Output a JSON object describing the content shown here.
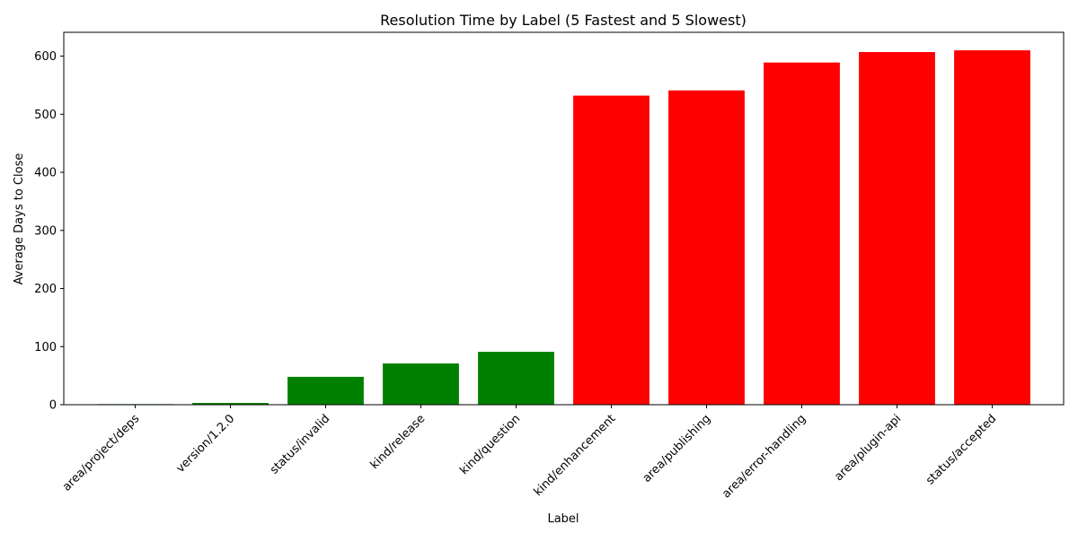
{
  "chart_data": {
    "type": "bar",
    "title": "Resolution Time by Label (5 Fastest and 5 Slowest)",
    "xlabel": "Label",
    "ylabel": "Average Days to Close",
    "categories": [
      "area/project/deps",
      "version/1.2.0",
      "status/invalid",
      "kind/release",
      "kind/question",
      "kind/enhancement",
      "area/publishing",
      "area/error-handling",
      "area/plugin-api",
      "status/accepted"
    ],
    "values": [
      1,
      3,
      48,
      71,
      91,
      532,
      541,
      589,
      607,
      610
    ],
    "bar_colors": [
      "#008000",
      "#008000",
      "#008000",
      "#008000",
      "#008000",
      "#ff0000",
      "#ff0000",
      "#ff0000",
      "#ff0000",
      "#ff0000"
    ],
    "ylim": [
      0,
      641
    ],
    "yticks": [
      0,
      100,
      200,
      300,
      400,
      500,
      600
    ],
    "grid": false,
    "legend": "none"
  }
}
